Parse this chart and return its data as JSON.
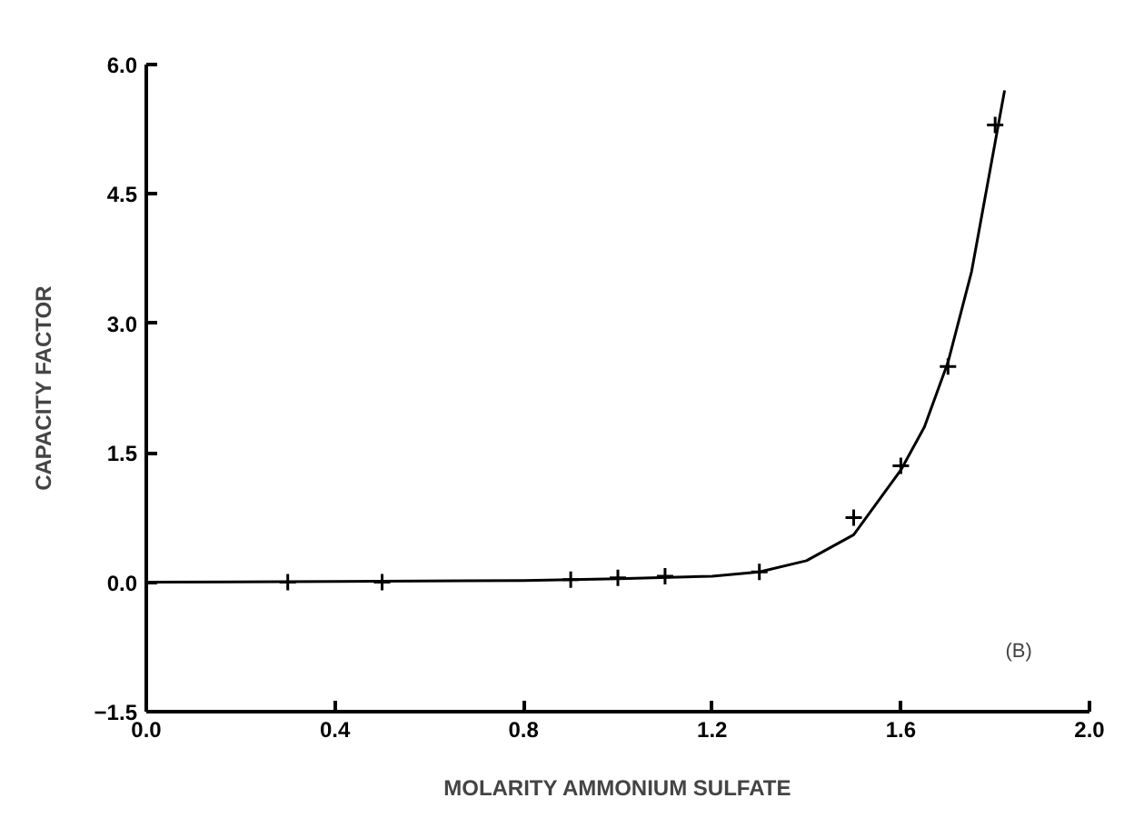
{
  "chart_data": {
    "type": "scatter",
    "xlabel": "MOLARITY AMMONIUM SULFATE",
    "ylabel": "CAPACITY FACTOR",
    "xlim": [
      0.0,
      2.0
    ],
    "ylim": [
      -1.5,
      6.0
    ],
    "xticks": [
      {
        "value": 0.0,
        "label": "0.0"
      },
      0.4,
      0.8,
      1.2,
      1.6,
      {
        "value": 2.0,
        "label": "2.0"
      }
    ],
    "yticks": [
      -1.5,
      {
        "value": 0.0,
        "label": "0.0"
      },
      1.5,
      {
        "value": 3.0,
        "label": "3.0"
      },
      4.5,
      {
        "value": 6.0,
        "label": "6.0"
      }
    ],
    "grid": false,
    "marker": "cross",
    "series": [
      {
        "color": "#000000",
        "x": [
          0.3,
          0.5,
          0.9,
          1.0,
          1.1,
          1.3,
          1.5,
          1.6,
          1.7,
          1.8
        ],
        "values": [
          0.0,
          0.0,
          0.03,
          0.05,
          0.07,
          0.12,
          0.75,
          1.35,
          2.5,
          5.3
        ]
      },
      {
        "type": "line",
        "marker": "none",
        "color": "#000000",
        "line_style": "solid",
        "x": [
          0.0,
          0.4,
          0.8,
          1.0,
          1.2,
          1.3,
          1.4,
          1.5,
          1.6,
          1.65,
          1.7,
          1.75,
          1.8,
          1.82
        ],
        "values": [
          0.0,
          0.01,
          0.02,
          0.04,
          0.07,
          0.12,
          0.25,
          0.55,
          1.3,
          1.8,
          2.55,
          3.6,
          5.1,
          5.7
        ]
      }
    ],
    "annotations": [
      "(B)"
    ]
  }
}
